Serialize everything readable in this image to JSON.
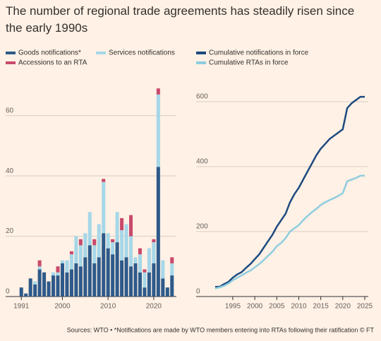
{
  "title": "The number of regional trade agreements has steadily risen since the early 1990s",
  "source": "Sources: WTO • *Notifications are made by WTO members entering into RTAs following their ratification © FT",
  "chart_data": [
    {
      "type": "bar",
      "stacked": true,
      "legend": "top-left",
      "grid": true,
      "x": [
        1991,
        1992,
        1993,
        1994,
        1995,
        1996,
        1997,
        1998,
        1999,
        2000,
        2001,
        2002,
        2003,
        2004,
        2005,
        2006,
        2007,
        2008,
        2009,
        2010,
        2011,
        2012,
        2013,
        2014,
        2015,
        2016,
        2017,
        2018,
        2019,
        2020,
        2021,
        2022,
        2023,
        2024
      ],
      "xlim": [
        1990.5,
        2024.5
      ],
      "xticks": [
        1991,
        2000,
        2010,
        2020
      ],
      "ylim": [
        0,
        70
      ],
      "yticks": [
        0,
        20,
        40,
        60
      ],
      "series": [
        {
          "name": "Goods notifications*",
          "color": "#2e5a8a",
          "values": [
            3,
            1,
            6,
            4,
            9,
            8,
            5,
            7,
            7,
            11,
            8,
            9,
            11,
            10,
            13,
            17,
            11,
            13,
            21,
            16,
            14,
            18,
            12,
            13,
            10,
            11,
            8,
            3,
            8,
            11,
            43,
            6,
            3,
            7
          ]
        },
        {
          "name": "Services notifications",
          "color": "#a6d7e8",
          "values": [
            0,
            0,
            0,
            1,
            1,
            0,
            0,
            1,
            1,
            1,
            4,
            5,
            9,
            7,
            8,
            11,
            6,
            11,
            17,
            5,
            4,
            10,
            10,
            11,
            10,
            2,
            6,
            5,
            8,
            7,
            24,
            6,
            0,
            4
          ]
        },
        {
          "name": "Accessions to an RTA",
          "color": "#c94a6c",
          "values": [
            0,
            0,
            0,
            0,
            2,
            0,
            0,
            0,
            2,
            0,
            0,
            1,
            0,
            2,
            0,
            0,
            2,
            0,
            1,
            0,
            1,
            0,
            4,
            0,
            7,
            0,
            2,
            1,
            0,
            1,
            2,
            0,
            0,
            2
          ]
        }
      ]
    },
    {
      "type": "line",
      "legend": "top-left",
      "grid": true,
      "x": [
        1991,
        1992,
        1993,
        1994,
        1995,
        1996,
        1997,
        1998,
        1999,
        2000,
        2001,
        2002,
        2003,
        2004,
        2005,
        2006,
        2007,
        2008,
        2009,
        2010,
        2011,
        2012,
        2013,
        2014,
        2015,
        2016,
        2017,
        2018,
        2019,
        2020,
        2021,
        2022,
        2023,
        2024,
        2025
      ],
      "xlim": [
        1991,
        2025
      ],
      "xticks": [
        1995,
        2000,
        2005,
        2010,
        2015,
        2020,
        2025
      ],
      "ylim": [
        0,
        650
      ],
      "yticks": [
        0,
        200,
        400,
        600
      ],
      "series": [
        {
          "name": "Cumulative notifications in force",
          "color": "#1e4a80",
          "values": [
            30,
            30,
            38,
            45,
            58,
            68,
            75,
            88,
            100,
            115,
            130,
            150,
            170,
            190,
            215,
            235,
            255,
            290,
            315,
            335,
            360,
            385,
            410,
            435,
            455,
            470,
            485,
            495,
            505,
            515,
            580,
            595,
            605,
            615,
            615
          ]
        },
        {
          "name": "Cumulative RTAs in force",
          "color": "#8fcde0",
          "values": [
            25,
            28,
            33,
            40,
            50,
            58,
            65,
            73,
            80,
            90,
            100,
            112,
            125,
            138,
            155,
            165,
            180,
            200,
            210,
            220,
            235,
            248,
            260,
            270,
            282,
            290,
            297,
            303,
            310,
            318,
            355,
            360,
            365,
            372,
            372
          ]
        }
      ]
    }
  ]
}
